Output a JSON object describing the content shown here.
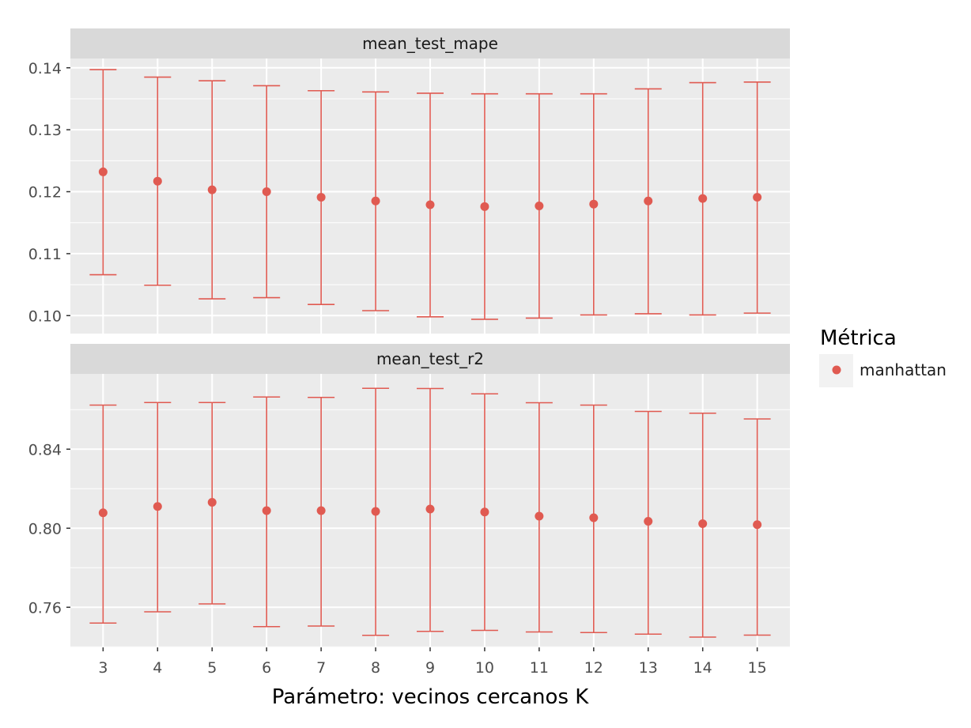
{
  "chart_data": {
    "type": "errorbar",
    "xlabel": "Parámetro: vecinos cercanos K",
    "x": [
      3,
      4,
      5,
      6,
      7,
      8,
      9,
      10,
      11,
      12,
      13,
      14,
      15
    ],
    "legend": {
      "title": "Métrica",
      "entries": [
        "manhattan"
      ],
      "placement": "right"
    },
    "colors": {
      "series": "#e05a51",
      "panel_bg": "#ebebeb",
      "strip_bg": "#d9d9d9",
      "grid": "#ffffff"
    },
    "grid": true,
    "facets": [
      {
        "strip": "mean_test_mape",
        "ylim": [
          0.0971,
          0.1415
        ],
        "yticks": [
          "0.10",
          "0.11",
          "0.12",
          "0.13",
          "0.14"
        ],
        "yticks_values": [
          0.1,
          0.11,
          0.12,
          0.13,
          0.14
        ],
        "series": [
          {
            "name": "manhattan",
            "mean": [
              0.1232,
              0.1217,
              0.1203,
              0.12,
              0.1191,
              0.1185,
              0.1179,
              0.1176,
              0.1177,
              0.118,
              0.1185,
              0.1189,
              0.1191
            ],
            "ymin": [
              0.1066,
              0.1049,
              0.1027,
              0.1029,
              0.1018,
              0.1008,
              0.0998,
              0.0994,
              0.0996,
              0.1001,
              0.1003,
              0.1001,
              0.1004
            ],
            "ymax": [
              0.1397,
              0.1385,
              0.1379,
              0.1371,
              0.1363,
              0.1361,
              0.1359,
              0.1358,
              0.1358,
              0.1358,
              0.1366,
              0.1376,
              0.1377
            ]
          }
        ]
      },
      {
        "strip": "mean_test_r2",
        "ylim": [
          0.7397,
          0.8781
        ],
        "yticks": [
          "0.76",
          "0.80",
          "0.84"
        ],
        "yticks_values": [
          0.76,
          0.8,
          0.84
        ],
        "series": [
          {
            "name": "manhattan",
            "mean": [
              0.8078,
              0.811,
              0.8131,
              0.8089,
              0.8089,
              0.8085,
              0.8097,
              0.8082,
              0.8061,
              0.8053,
              0.8035,
              0.8023,
              0.8018
            ],
            "ymin": [
              0.752,
              0.7577,
              0.7617,
              0.7502,
              0.7505,
              0.7458,
              0.7478,
              0.7483,
              0.7475,
              0.7472,
              0.7464,
              0.7449,
              0.7459
            ],
            "ymax": [
              0.8623,
              0.8636,
              0.8636,
              0.8664,
              0.8662,
              0.8708,
              0.8707,
              0.868,
              0.8635,
              0.8623,
              0.8591,
              0.8582,
              0.8553
            ]
          }
        ]
      }
    ]
  }
}
